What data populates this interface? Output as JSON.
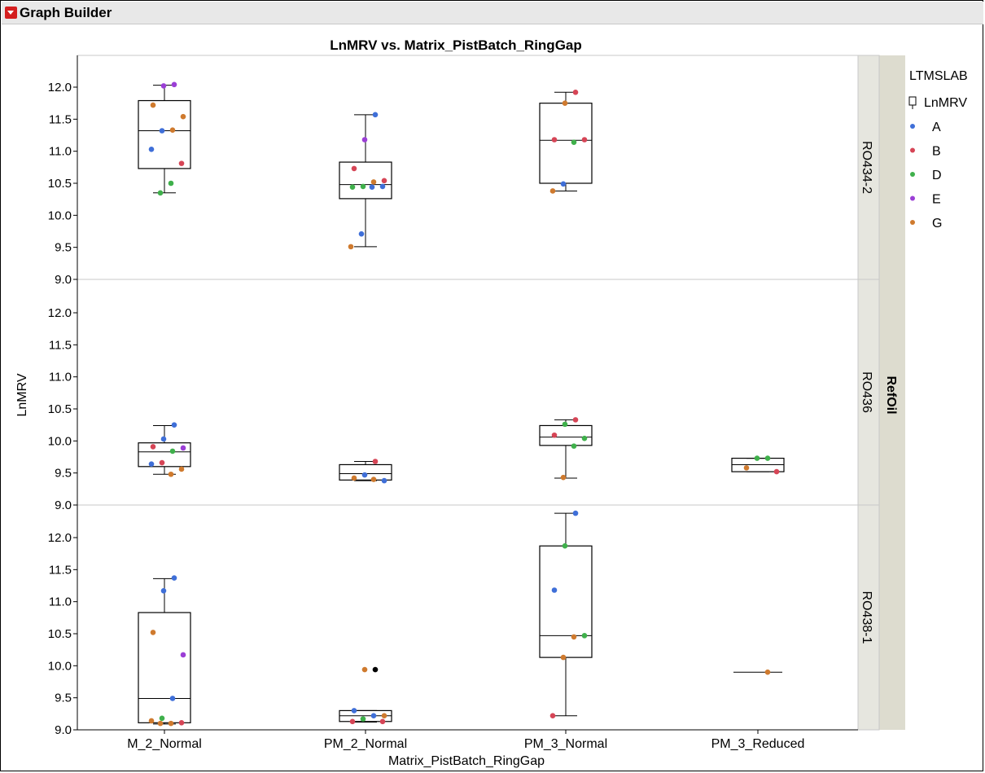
{
  "panel": {
    "title": "Graph Builder"
  },
  "colors": {
    "A": "#3f6fd8",
    "B": "#d64556",
    "D": "#3fb04b",
    "E": "#9b3fd6",
    "G": "#cf7a2e",
    "outlier": "#000000",
    "header_bg": "#e8e8e8",
    "strip_bg": "#e6e6df",
    "outer_strip_bg": "#dddccf"
  },
  "chart_data": {
    "type": "box",
    "title": "LnMRV vs. Matrix_PistBatch_RingGap",
    "xlabel": "Matrix_PistBatch_RingGap",
    "ylabel": "LnMRV",
    "categories": [
      "M_2_Normal",
      "PM_2_Normal",
      "PM_3_Normal",
      "PM_3_Reduced"
    ],
    "group_by": "RefOil",
    "ylim": [
      9.0,
      12.2
    ],
    "yticks": [
      "9.0",
      "9.5",
      "10.0",
      "10.5",
      "11.0",
      "11.5",
      "12.0"
    ],
    "legend": {
      "title": "LTMSLAB",
      "box_label": "LnMRV",
      "placement": "right",
      "entries": [
        "A",
        "B",
        "D",
        "E",
        "G"
      ]
    },
    "panels": [
      {
        "label": "RO434-2",
        "boxes": [
          {
            "category": "M_2_Normal",
            "min": 10.35,
            "q1": 10.73,
            "median": 11.32,
            "q3": 11.79,
            "max": 12.03
          },
          {
            "category": "PM_2_Normal",
            "min": 9.51,
            "q1": 10.26,
            "median": 10.48,
            "q3": 10.83,
            "max": 11.57
          },
          {
            "category": "PM_3_Normal",
            "min": 10.38,
            "q1": 10.5,
            "median": 11.17,
            "q3": 11.75,
            "max": 11.92
          }
        ],
        "points": [
          {
            "category": "M_2_Normal",
            "lab": "E",
            "value": 12.04
          },
          {
            "category": "M_2_Normal",
            "lab": "E",
            "value": 12.02
          },
          {
            "category": "M_2_Normal",
            "lab": "G",
            "value": 11.72
          },
          {
            "category": "M_2_Normal",
            "lab": "G",
            "value": 11.54
          },
          {
            "category": "M_2_Normal",
            "lab": "G",
            "value": 11.33
          },
          {
            "category": "M_2_Normal",
            "lab": "A",
            "value": 11.32
          },
          {
            "category": "M_2_Normal",
            "lab": "A",
            "value": 11.03
          },
          {
            "category": "M_2_Normal",
            "lab": "B",
            "value": 10.81
          },
          {
            "category": "M_2_Normal",
            "lab": "D",
            "value": 10.5
          },
          {
            "category": "M_2_Normal",
            "lab": "D",
            "value": 10.35
          },
          {
            "category": "PM_2_Normal",
            "lab": "A",
            "value": 11.57
          },
          {
            "category": "PM_2_Normal",
            "lab": "E",
            "value": 11.18
          },
          {
            "category": "PM_2_Normal",
            "lab": "B",
            "value": 10.73
          },
          {
            "category": "PM_2_Normal",
            "lab": "B",
            "value": 10.54
          },
          {
            "category": "PM_2_Normal",
            "lab": "G",
            "value": 10.52
          },
          {
            "category": "PM_2_Normal",
            "lab": "D",
            "value": 10.45
          },
          {
            "category": "PM_2_Normal",
            "lab": "D",
            "value": 10.44
          },
          {
            "category": "PM_2_Normal",
            "lab": "A",
            "value": 10.45
          },
          {
            "category": "PM_2_Normal",
            "lab": "A",
            "value": 10.44
          },
          {
            "category": "PM_2_Normal",
            "lab": "A",
            "value": 9.71
          },
          {
            "category": "PM_2_Normal",
            "lab": "G",
            "value": 9.51
          },
          {
            "category": "PM_3_Normal",
            "lab": "B",
            "value": 11.92
          },
          {
            "category": "PM_3_Normal",
            "lab": "G",
            "value": 11.75
          },
          {
            "category": "PM_3_Normal",
            "lab": "B",
            "value": 11.18
          },
          {
            "category": "PM_3_Normal",
            "lab": "B",
            "value": 11.18
          },
          {
            "category": "PM_3_Normal",
            "lab": "D",
            "value": 11.14
          },
          {
            "category": "PM_3_Normal",
            "lab": "A",
            "value": 10.49
          },
          {
            "category": "PM_3_Normal",
            "lab": "G",
            "value": 10.38
          }
        ]
      },
      {
        "label": "RO436",
        "boxes": [
          {
            "category": "M_2_Normal",
            "min": 9.48,
            "q1": 9.6,
            "median": 9.83,
            "q3": 9.97,
            "max": 10.24
          },
          {
            "category": "PM_2_Normal",
            "min": 9.38,
            "q1": 9.39,
            "median": 9.49,
            "q3": 9.63,
            "max": 9.68
          },
          {
            "category": "PM_3_Normal",
            "min": 9.42,
            "q1": 9.93,
            "median": 10.06,
            "q3": 10.24,
            "max": 10.33
          },
          {
            "category": "PM_3_Reduced",
            "min": 9.52,
            "q1": 9.52,
            "median": 9.63,
            "q3": 9.73,
            "max": 9.73
          }
        ],
        "points": [
          {
            "category": "M_2_Normal",
            "lab": "A",
            "value": 10.25
          },
          {
            "category": "M_2_Normal",
            "lab": "A",
            "value": 10.03
          },
          {
            "category": "M_2_Normal",
            "lab": "B",
            "value": 9.91
          },
          {
            "category": "M_2_Normal",
            "lab": "E",
            "value": 9.89
          },
          {
            "category": "M_2_Normal",
            "lab": "D",
            "value": 9.84
          },
          {
            "category": "M_2_Normal",
            "lab": "B",
            "value": 9.66
          },
          {
            "category": "M_2_Normal",
            "lab": "A",
            "value": 9.64
          },
          {
            "category": "M_2_Normal",
            "lab": "G",
            "value": 9.56
          },
          {
            "category": "M_2_Normal",
            "lab": "G",
            "value": 9.48
          },
          {
            "category": "PM_2_Normal",
            "lab": "B",
            "value": 9.68
          },
          {
            "category": "PM_2_Normal",
            "lab": "A",
            "value": 9.47
          },
          {
            "category": "PM_2_Normal",
            "lab": "G",
            "value": 9.42
          },
          {
            "category": "PM_2_Normal",
            "lab": "A",
            "value": 9.38
          },
          {
            "category": "PM_2_Normal",
            "lab": "G",
            "value": 9.4
          },
          {
            "category": "PM_3_Normal",
            "lab": "B",
            "value": 10.33
          },
          {
            "category": "PM_3_Normal",
            "lab": "D",
            "value": 10.26
          },
          {
            "category": "PM_3_Normal",
            "lab": "B",
            "value": 10.09
          },
          {
            "category": "PM_3_Normal",
            "lab": "D",
            "value": 10.04
          },
          {
            "category": "PM_3_Normal",
            "lab": "D",
            "value": 9.92
          },
          {
            "category": "PM_3_Normal",
            "lab": "G",
            "value": 9.43
          },
          {
            "category": "PM_3_Reduced",
            "lab": "D",
            "value": 9.73
          },
          {
            "category": "PM_3_Reduced",
            "lab": "D",
            "value": 9.73
          },
          {
            "category": "PM_3_Reduced",
            "lab": "G",
            "value": 9.58
          },
          {
            "category": "PM_3_Reduced",
            "lab": "B",
            "value": 9.52
          }
        ]
      },
      {
        "label": "RO438-1",
        "boxes": [
          {
            "category": "M_2_Normal",
            "min": 9.09,
            "q1": 9.11,
            "median": 9.49,
            "q3": 10.83,
            "max": 11.36
          },
          {
            "category": "PM_2_Normal",
            "min": 9.12,
            "q1": 9.13,
            "median": 9.22,
            "q3": 9.3,
            "max": 9.3
          },
          {
            "category": "PM_3_Normal",
            "min": 9.22,
            "q1": 10.13,
            "median": 10.47,
            "q3": 11.87,
            "max": 12.38
          }
        ],
        "points": [
          {
            "category": "M_2_Normal",
            "lab": "A",
            "value": 11.37
          },
          {
            "category": "M_2_Normal",
            "lab": "A",
            "value": 11.17
          },
          {
            "category": "M_2_Normal",
            "lab": "G",
            "value": 10.52
          },
          {
            "category": "M_2_Normal",
            "lab": "E",
            "value": 10.17
          },
          {
            "category": "M_2_Normal",
            "lab": "A",
            "value": 9.49
          },
          {
            "category": "M_2_Normal",
            "lab": "D",
            "value": 9.18
          },
          {
            "category": "M_2_Normal",
            "lab": "G",
            "value": 9.14
          },
          {
            "category": "M_2_Normal",
            "lab": "B",
            "value": 9.11
          },
          {
            "category": "M_2_Normal",
            "lab": "G",
            "value": 9.1
          },
          {
            "category": "M_2_Normal",
            "lab": "G",
            "value": 9.1
          },
          {
            "category": "PM_2_Normal",
            "lab": "outlier",
            "value": 9.94
          },
          {
            "category": "PM_2_Normal",
            "lab": "G",
            "value": 9.94
          },
          {
            "category": "PM_2_Normal",
            "lab": "A",
            "value": 9.3
          },
          {
            "category": "PM_2_Normal",
            "lab": "G",
            "value": 9.22
          },
          {
            "category": "PM_2_Normal",
            "lab": "A",
            "value": 9.22
          },
          {
            "category": "PM_2_Normal",
            "lab": "D",
            "value": 9.17
          },
          {
            "category": "PM_2_Normal",
            "lab": "B",
            "value": 9.13
          },
          {
            "category": "PM_2_Normal",
            "lab": "B",
            "value": 9.13
          },
          {
            "category": "PM_3_Normal",
            "lab": "A",
            "value": 12.38
          },
          {
            "category": "PM_3_Normal",
            "lab": "D",
            "value": 11.87
          },
          {
            "category": "PM_3_Normal",
            "lab": "A",
            "value": 11.18
          },
          {
            "category": "PM_3_Normal",
            "lab": "D",
            "value": 10.47
          },
          {
            "category": "PM_3_Normal",
            "lab": "G",
            "value": 10.45
          },
          {
            "category": "PM_3_Normal",
            "lab": "G",
            "value": 10.13
          },
          {
            "category": "PM_3_Normal",
            "lab": "B",
            "value": 9.22
          },
          {
            "category": "PM_3_Reduced",
            "lab": "G",
            "value": 9.9
          }
        ],
        "lines": [
          {
            "category": "PM_3_Reduced",
            "value": 9.9
          }
        ]
      }
    ]
  }
}
